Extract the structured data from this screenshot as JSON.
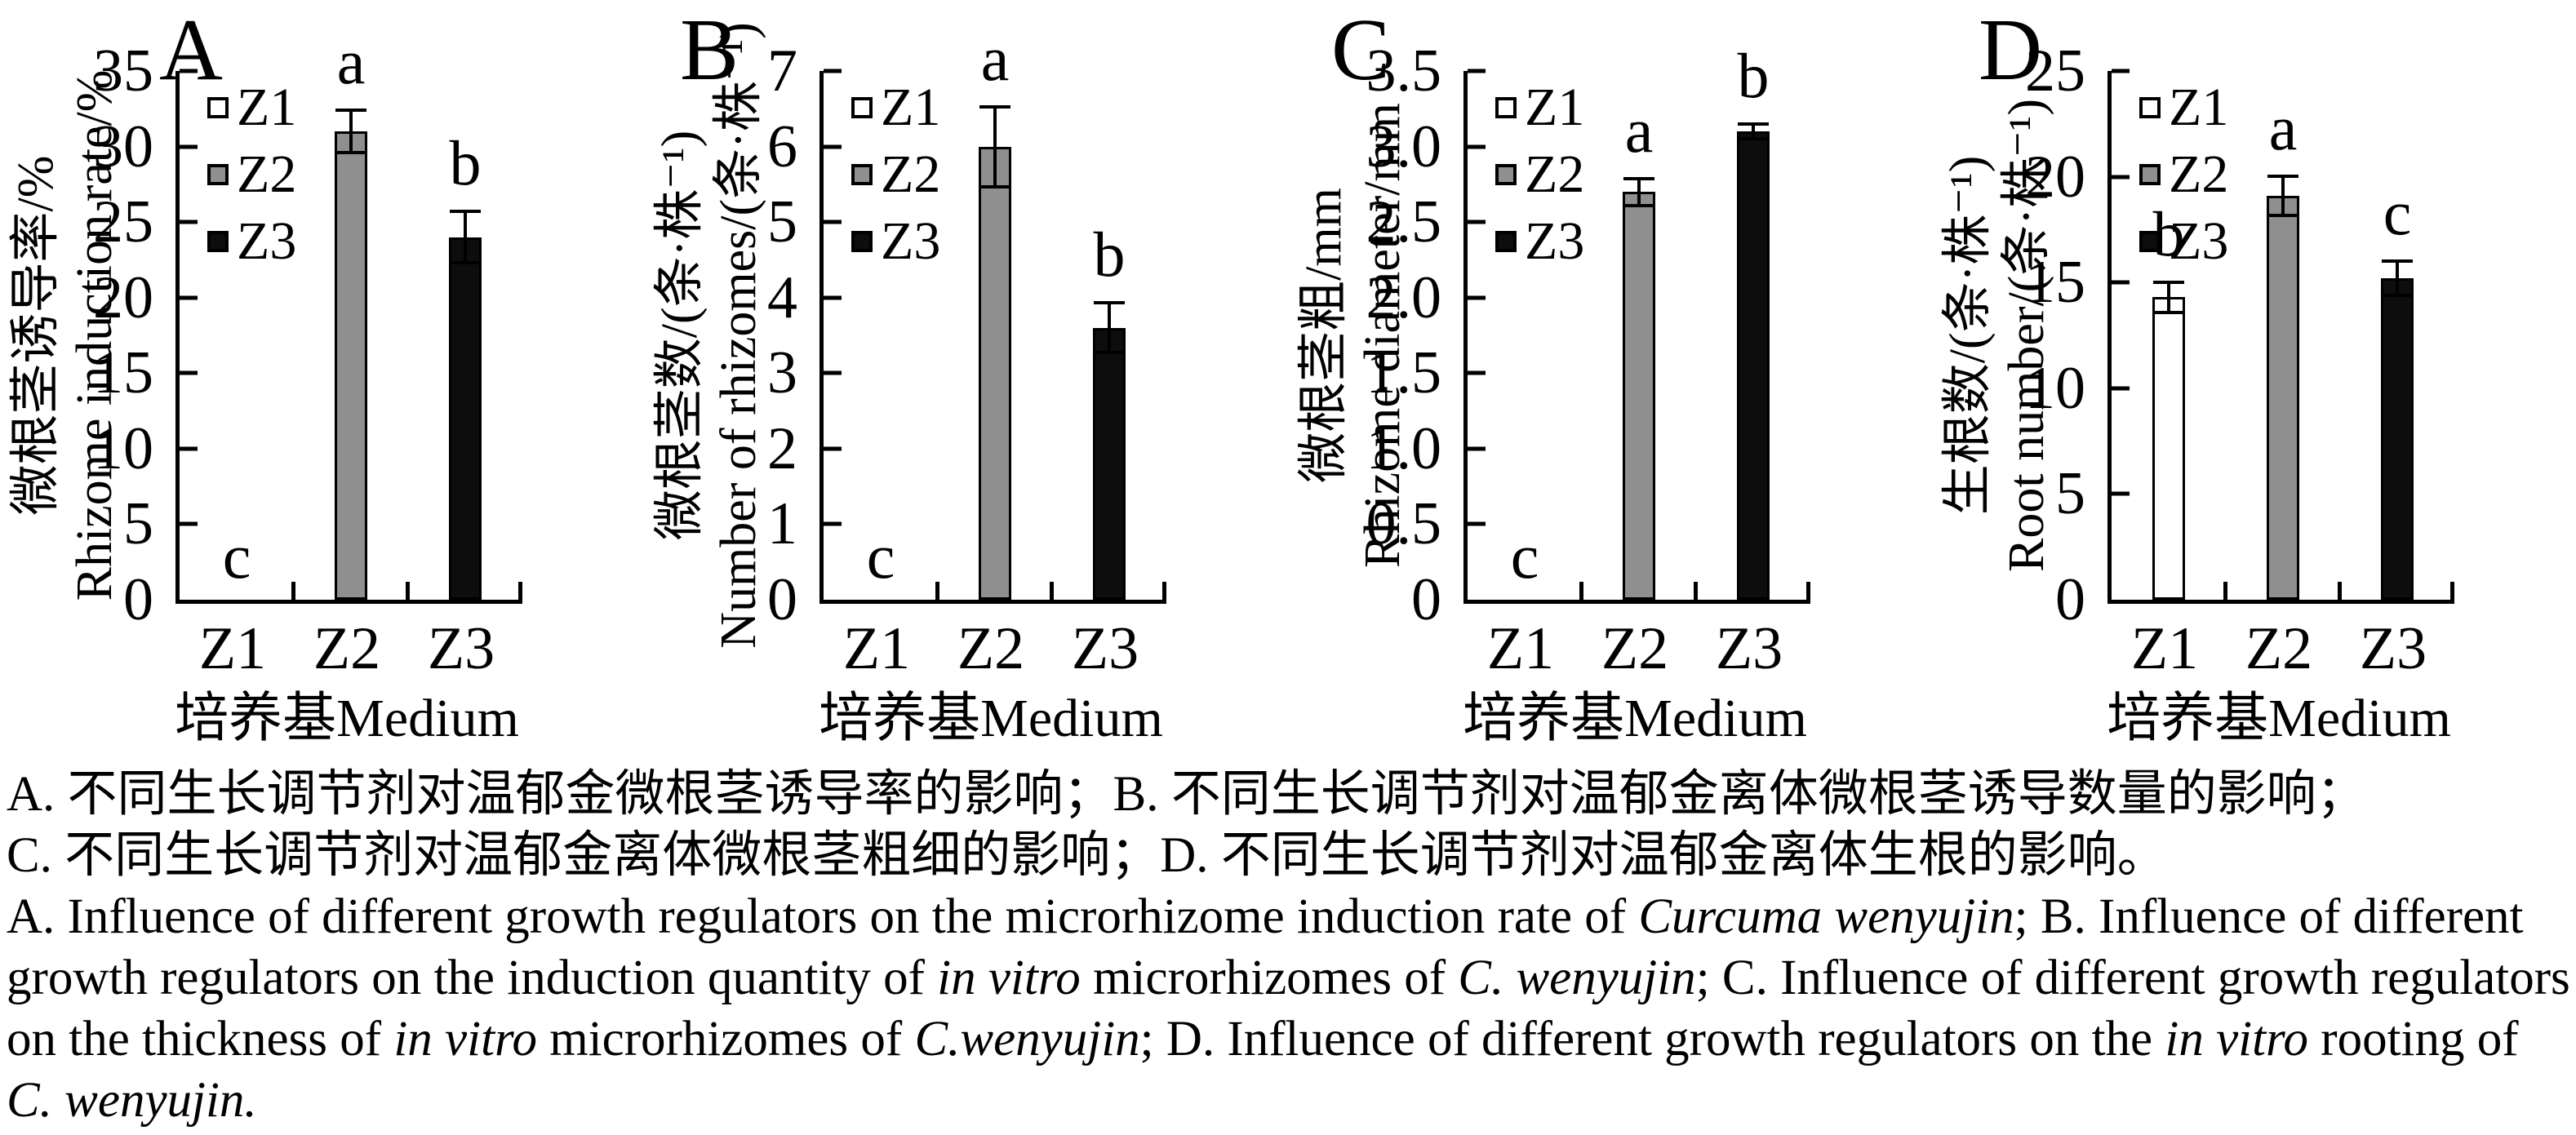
{
  "chart_data": [
    {
      "type": "bar",
      "panel_label": "A",
      "categories": [
        "Z1",
        "Z2",
        "Z3"
      ],
      "values": [
        0,
        31.0,
        24.0
      ],
      "errors": [
        0,
        1.5,
        1.8
      ],
      "sig_letters": [
        "c",
        "a",
        "b"
      ],
      "ylabel_zh": "微根茎诱导率/%",
      "ylabel_en": "Rhizome induction rate/%",
      "xlabel": "培养基Medium",
      "ylim": [
        0,
        35
      ],
      "yticks": [
        "35",
        "30",
        "25",
        "20",
        "15",
        "10",
        "5",
        "0"
      ],
      "legend": [
        "Z1",
        "Z2",
        "Z3"
      ],
      "legend_position": "upper-left",
      "bar_colors": [
        "#ffffff",
        "#8f8f8f",
        "#0d0d0d"
      ],
      "grid": false
    },
    {
      "type": "bar",
      "panel_label": "B",
      "categories": [
        "Z1",
        "Z2",
        "Z3"
      ],
      "values": [
        0,
        6.0,
        3.6
      ],
      "errors": [
        0,
        0.55,
        0.35
      ],
      "sig_letters": [
        "c",
        "a",
        "b"
      ],
      "ylabel_zh": "微根茎数/(条·株⁻¹)",
      "ylabel_en": "Number of rhizomes/(条·株⁻¹)",
      "xlabel": "培养基Medium",
      "ylim": [
        0,
        7
      ],
      "yticks": [
        "7",
        "6",
        "5",
        "4",
        "3",
        "2",
        "1",
        "0"
      ],
      "legend": [
        "Z1",
        "Z2",
        "Z3"
      ],
      "legend_position": "upper-left",
      "bar_colors": [
        "#ffffff",
        "#8f8f8f",
        "#0d0d0d"
      ],
      "grid": false
    },
    {
      "type": "bar",
      "panel_label": "C",
      "categories": [
        "Z1",
        "Z2",
        "Z3"
      ],
      "values": [
        0,
        2.7,
        3.1
      ],
      "errors": [
        0,
        0.1,
        0.06
      ],
      "sig_letters": [
        "c",
        "a",
        "b"
      ],
      "ylabel_zh": "微根茎粗/mm",
      "ylabel_en": "Rhizome diameter/mm",
      "xlabel": "培养基Medium",
      "ylim": [
        0,
        3.5
      ],
      "yticks": [
        "3.5",
        "3.0",
        "2.5",
        "2.0",
        "1.5",
        "1.0",
        "0.5",
        "0"
      ],
      "legend": [
        "Z1",
        "Z2",
        "Z3"
      ],
      "legend_position": "upper-left",
      "bar_colors": [
        "#ffffff",
        "#8f8f8f",
        "#0d0d0d"
      ],
      "grid": false
    },
    {
      "type": "bar",
      "panel_label": "D",
      "categories": [
        "Z1",
        "Z2",
        "Z3"
      ],
      "values": [
        14.3,
        19.1,
        15.2
      ],
      "errors": [
        0.8,
        1.0,
        0.9
      ],
      "sig_letters": [
        "b",
        "a",
        "c"
      ],
      "ylabel_zh": "生根数/(条·株⁻¹)",
      "ylabel_en": "Root number/(条·株⁻¹)",
      "xlabel": "培养基Medium",
      "ylim": [
        0,
        25
      ],
      "yticks": [
        "25",
        "20",
        "15",
        "10",
        "5",
        "0"
      ],
      "legend": [
        "Z1",
        "Z2",
        "Z3"
      ],
      "legend_position": "upper-left",
      "bar_colors": [
        "#ffffff",
        "#8f8f8f",
        "#0d0d0d"
      ],
      "grid": false
    }
  ],
  "caption": {
    "lines_zh": [
      "A. 不同生长调节剂对温郁金微根茎诱导率的影响；B. 不同生长调节剂对温郁金离体微根茎诱导数量的影响；",
      "C. 不同生长调节剂对温郁金离体微根茎粗细的影响；D. 不同生长调节剂对温郁金离体生根的影响。"
    ],
    "lines_en": [
      [
        {
          "t": "A. Influence of different growth regulators on the microrhizome induction rate of "
        },
        {
          "t": "Curcuma wenyujin",
          "i": true
        },
        {
          "t": "; B. Influence of different"
        }
      ],
      [
        {
          "t": "growth regulators on the induction quantity of "
        },
        {
          "t": "in vitro",
          "i": true
        },
        {
          "t": " microrhizomes of "
        },
        {
          "t": "C. wenyujin",
          "i": true
        },
        {
          "t": "; C. Influence of different growth regulators"
        }
      ],
      [
        {
          "t": "on the thickness of "
        },
        {
          "t": "in vitro",
          "i": true
        },
        {
          "t": " microrhizomes of "
        },
        {
          "t": "C.wenyujin",
          "i": true
        },
        {
          "t": "; D. Influence of different growth regulators on the "
        },
        {
          "t": "in vitro",
          "i": true
        },
        {
          "t": " rooting of"
        }
      ],
      [
        {
          "t": "C. wenyujin.",
          "i": true
        }
      ]
    ]
  }
}
